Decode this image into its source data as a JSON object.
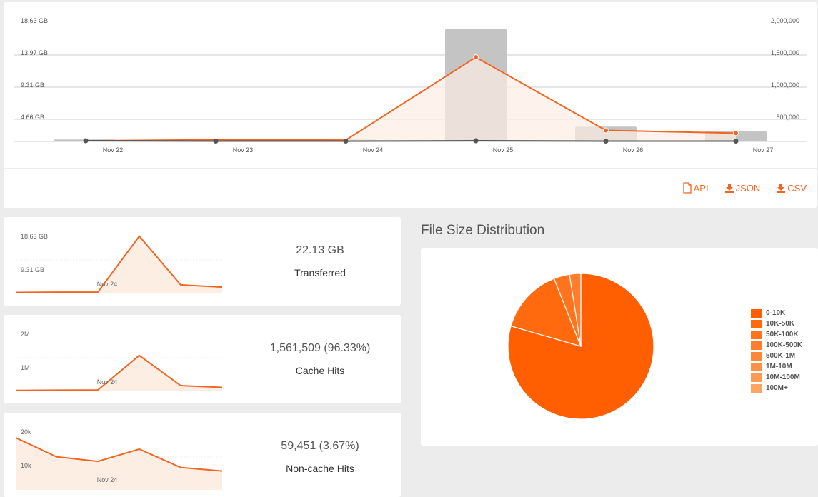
{
  "chart_data": [
    {
      "type": "bar",
      "name": "main-traffic",
      "categories": [
        "Nov 22",
        "Nov 23",
        "Nov 24",
        "Nov 25",
        "Nov 26",
        "Nov 27"
      ],
      "y_left_ticks": [
        "18.63 GB",
        "13.97 GB",
        "9.31 GB",
        "4.66 GB"
      ],
      "y_right_ticks": [
        "2,000,000",
        "1,500,000",
        "1,000,000",
        "500,000"
      ],
      "ylim_left_gb": [
        0,
        18.63
      ],
      "ylim_right": [
        0,
        2000000
      ],
      "series": [
        {
          "kind": "bar",
          "axis": "right",
          "color": "#c4c4c4",
          "values": [
            30000,
            20000,
            30000,
            1750000,
            230000,
            160000
          ]
        },
        {
          "kind": "area-line",
          "axis": "left",
          "color": "#f26522",
          "values": [
            0.1,
            0.25,
            0.2,
            12.2,
            1.6,
            1.2
          ]
        },
        {
          "kind": "line",
          "axis": "left",
          "color": "#555555",
          "values": [
            0.1,
            0.05,
            0.05,
            0.1,
            0.05,
            0.05
          ]
        }
      ],
      "grid": true
    },
    {
      "type": "area",
      "name": "transferred-sparkline",
      "y_ticks": [
        "18.63 GB",
        "9.31 GB"
      ],
      "x_label": "Nov 24",
      "values": [
        0.1,
        0.2,
        0.2,
        18.0,
        2.5,
        1.8
      ],
      "ylim": [
        0,
        18.63
      ]
    },
    {
      "type": "area",
      "name": "cache-hits-sparkline",
      "y_ticks": [
        "2M",
        "1M"
      ],
      "x_label": "Nov 24",
      "values": [
        5000,
        15000,
        20000,
        1200000,
        170000,
        110000
      ],
      "ylim": [
        0,
        2000000
      ]
    },
    {
      "type": "area",
      "name": "noncache-hits-sparkline",
      "y_ticks": [
        "20k",
        "10k"
      ],
      "x_label": "Nov 24",
      "values": [
        20500,
        13000,
        11200,
        16000,
        8800,
        7400
      ],
      "ylim": [
        0,
        23000
      ]
    },
    {
      "type": "pie",
      "name": "file-size-distribution",
      "title": "File Size Distribution",
      "labels": [
        "0-10K",
        "10K-50K",
        "50K-100K",
        "100K-500K",
        "500K-1M",
        "1M-10M",
        "10M-100M",
        "100M+"
      ],
      "values": [
        79.5,
        14.5,
        3.5,
        2.5,
        0.0,
        0.0,
        0.0,
        0.0
      ],
      "colors": [
        "#ff5f00",
        "#ff6a0e",
        "#ff741c",
        "#ff7d2b",
        "#ff8739",
        "#ff9047",
        "#ff9a55",
        "#ffa463"
      ]
    }
  ],
  "exports": {
    "api": "API",
    "json": "JSON",
    "csv": "CSV"
  },
  "stats": {
    "transferred": {
      "value": "22.13 GB",
      "label": "Transferred"
    },
    "cache_hits": {
      "value": "1,561,509 (96.33%)",
      "label": "Cache Hits"
    },
    "noncache_hits": {
      "value": "59,451 (3.67%)",
      "label": "Non-cache Hits"
    }
  },
  "pie_title": "File Size Distribution",
  "colors": {
    "accent": "#f26522",
    "bar": "#c4c4c4",
    "area_fill": "#fdeee4"
  }
}
